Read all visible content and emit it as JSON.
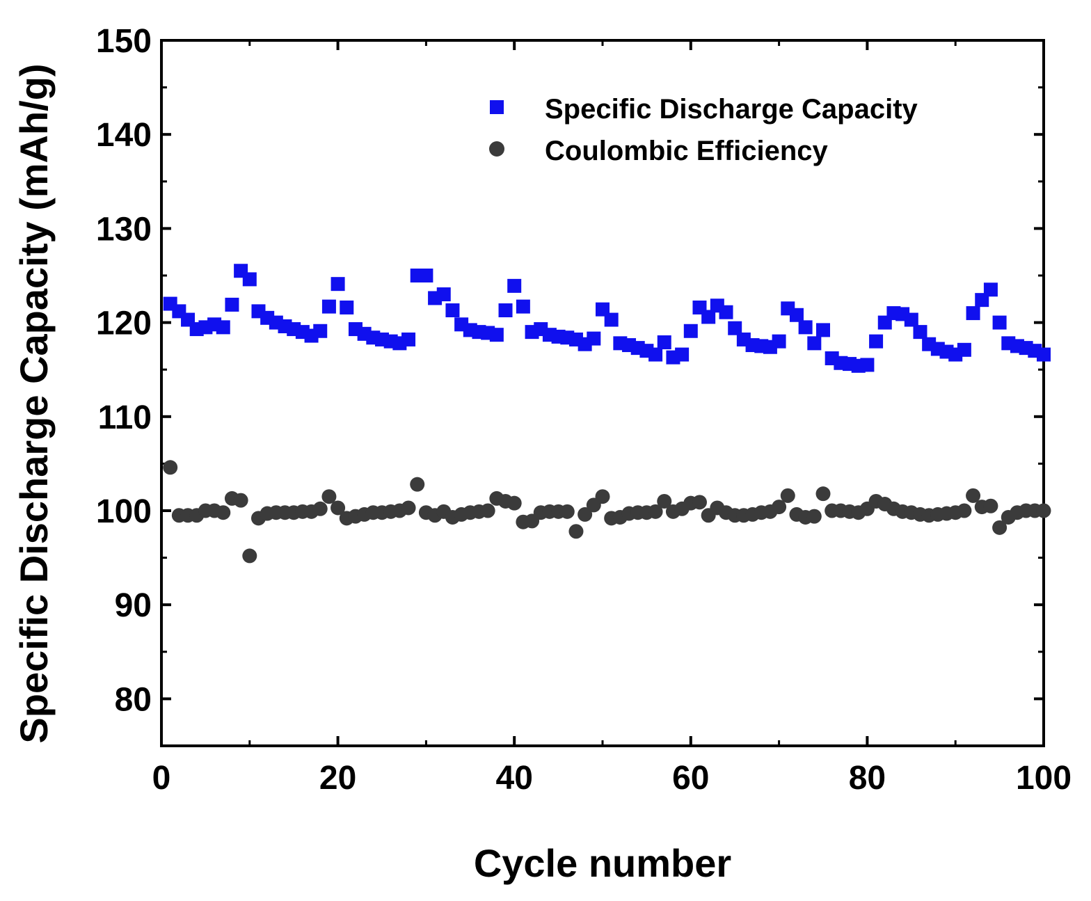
{
  "chart_data": {
    "type": "scatter",
    "title": "",
    "xlabel": "Cycle number",
    "ylabel": "Specific Discharge Capacity (mAh/g)",
    "xlim": [
      0,
      100
    ],
    "ylim": [
      75,
      150
    ],
    "xticks": [
      "0",
      "20",
      "40",
      "60",
      "80",
      "100"
    ],
    "yticks": [
      "80",
      "90",
      "100",
      "110",
      "120",
      "130",
      "140",
      "150"
    ],
    "grid": false,
    "legend_position": "top-right",
    "series": [
      {
        "name": "Specific Discharge Capacity",
        "marker": "square",
        "color": "#1010ee",
        "x": [
          1,
          2,
          3,
          4,
          5,
          6,
          7,
          8,
          9,
          10,
          11,
          12,
          13,
          14,
          15,
          16,
          17,
          18,
          19,
          20,
          21,
          22,
          23,
          24,
          25,
          26,
          27,
          28,
          29,
          30,
          31,
          32,
          33,
          34,
          35,
          36,
          37,
          38,
          39,
          40,
          41,
          42,
          43,
          44,
          45,
          46,
          47,
          48,
          49,
          50,
          51,
          52,
          53,
          54,
          55,
          56,
          57,
          58,
          59,
          60,
          61,
          62,
          63,
          64,
          65,
          66,
          67,
          68,
          69,
          70,
          71,
          72,
          73,
          74,
          75,
          76,
          77,
          78,
          79,
          80,
          81,
          82,
          83,
          84,
          85,
          86,
          87,
          88,
          89,
          90,
          91,
          92,
          93,
          94,
          95,
          96,
          97,
          98,
          99,
          100
        ],
        "y": [
          122.0,
          121.2,
          120.3,
          119.3,
          119.5,
          119.8,
          119.5,
          121.9,
          125.5,
          124.6,
          121.2,
          120.5,
          120.0,
          119.6,
          119.3,
          119.0,
          118.6,
          119.1,
          121.7,
          124.1,
          121.6,
          119.3,
          118.8,
          118.4,
          118.2,
          118.0,
          117.8,
          118.2,
          125.0,
          125.0,
          122.6,
          123.0,
          121.3,
          119.8,
          119.2,
          119.0,
          118.9,
          118.7,
          121.3,
          123.9,
          121.7,
          119.0,
          119.3,
          118.7,
          118.5,
          118.4,
          118.2,
          117.7,
          118.3,
          121.4,
          120.3,
          117.8,
          117.6,
          117.3,
          117.0,
          116.6,
          117.9,
          116.3,
          116.6,
          119.1,
          121.6,
          120.6,
          121.8,
          121.1,
          119.4,
          118.2,
          117.6,
          117.5,
          117.4,
          118.0,
          121.5,
          120.8,
          119.5,
          117.8,
          119.2,
          116.2,
          115.7,
          115.6,
          115.4,
          115.5,
          118.0,
          120.0,
          121.0,
          120.9,
          120.3,
          119.0,
          117.7,
          117.2,
          116.9,
          116.6,
          117.1,
          121.0,
          122.4,
          123.5,
          120.0,
          117.8,
          117.5,
          117.3,
          117.0,
          116.6
        ]
      },
      {
        "name": "Coulombic Efficiency",
        "marker": "circle",
        "color": "#3b3b3b",
        "x": [
          1,
          2,
          3,
          4,
          5,
          6,
          7,
          8,
          9,
          10,
          11,
          12,
          13,
          14,
          15,
          16,
          17,
          18,
          19,
          20,
          21,
          22,
          23,
          24,
          25,
          26,
          27,
          28,
          29,
          30,
          31,
          32,
          33,
          34,
          35,
          36,
          37,
          38,
          39,
          40,
          41,
          42,
          43,
          44,
          45,
          46,
          47,
          48,
          49,
          50,
          51,
          52,
          53,
          54,
          55,
          56,
          57,
          58,
          59,
          60,
          61,
          62,
          63,
          64,
          65,
          66,
          67,
          68,
          69,
          70,
          71,
          72,
          73,
          74,
          75,
          76,
          77,
          78,
          79,
          80,
          81,
          82,
          83,
          84,
          85,
          86,
          87,
          88,
          89,
          90,
          91,
          92,
          93,
          94,
          95,
          96,
          97,
          98,
          99,
          100
        ],
        "y": [
          104.6,
          99.5,
          99.5,
          99.5,
          100.0,
          100.0,
          99.8,
          101.3,
          101.1,
          95.2,
          99.2,
          99.7,
          99.8,
          99.8,
          99.8,
          99.9,
          99.9,
          100.2,
          101.5,
          100.3,
          99.2,
          99.4,
          99.6,
          99.8,
          99.8,
          99.9,
          100.0,
          100.3,
          102.8,
          99.8,
          99.5,
          99.9,
          99.3,
          99.6,
          99.8,
          99.9,
          100.0,
          101.3,
          101.0,
          100.8,
          98.8,
          98.9,
          99.8,
          99.9,
          99.9,
          99.9,
          97.8,
          99.6,
          100.6,
          101.5,
          99.2,
          99.3,
          99.7,
          99.8,
          99.8,
          99.9,
          101.0,
          99.9,
          100.2,
          100.8,
          100.9,
          99.5,
          100.3,
          99.8,
          99.5,
          99.5,
          99.6,
          99.8,
          99.9,
          100.4,
          101.6,
          99.6,
          99.3,
          99.4,
          101.8,
          100.0,
          100.0,
          99.9,
          99.8,
          100.2,
          101.0,
          100.7,
          100.2,
          99.9,
          99.8,
          99.6,
          99.5,
          99.6,
          99.7,
          99.8,
          100.0,
          101.6,
          100.4,
          100.5,
          98.2,
          99.3,
          99.8,
          100.0,
          100.0,
          100.0
        ]
      }
    ]
  }
}
